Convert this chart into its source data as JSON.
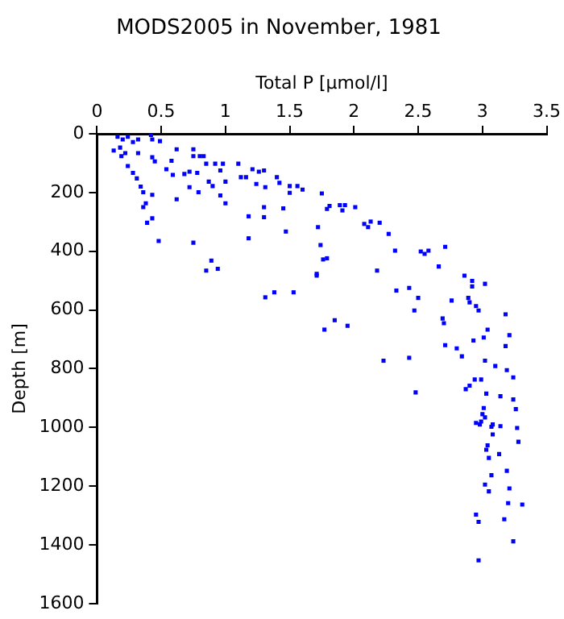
{
  "chart_data": {
    "type": "scatter",
    "title": "MODS2005 in November, 1981",
    "xlabel": "Total P [µmol/l]",
    "ylabel": "Depth [m]",
    "xlim": [
      0,
      3.5
    ],
    "xticks": [
      0,
      0.5,
      1,
      1.5,
      2,
      2.5,
      3,
      3.5
    ],
    "ylim": [
      1600,
      0
    ],
    "yticks": [
      0,
      200,
      400,
      600,
      800,
      1000,
      1200,
      1400,
      1600
    ],
    "grid": false,
    "legend": false,
    "marker": "square",
    "series": [
      {
        "color": "#0000ff",
        "x": [
          0.16,
          0.2,
          0.24,
          0.18,
          0.13,
          0.22,
          0.28,
          0.32,
          0.42,
          0.43,
          0.49,
          0.32,
          0.19,
          0.24,
          0.28,
          0.31,
          0.34,
          0.36,
          0.43,
          0.38,
          0.36,
          0.43,
          0.39,
          0.48,
          0.62,
          0.43,
          0.45,
          0.58,
          0.54,
          0.59,
          0.62,
          0.75,
          0.75,
          0.72,
          0.68,
          0.72,
          0.78,
          0.8,
          0.83,
          0.85,
          0.79,
          0.87,
          0.9,
          0.92,
          0.96,
          0.98,
          1.0,
          0.96,
          1.0,
          0.75,
          0.89,
          0.85,
          0.94,
          1.1,
          1.12,
          1.16,
          1.18,
          1.18,
          1.21,
          1.26,
          1.3,
          1.24,
          1.31,
          1.3,
          1.3,
          1.31,
          1.38,
          1.53,
          1.4,
          1.42,
          1.45,
          1.47,
          1.5,
          1.5,
          1.56,
          1.6,
          1.71,
          1.75,
          1.79,
          1.81,
          1.89,
          1.93,
          1.91,
          2.01,
          1.72,
          1.74,
          1.76,
          1.79,
          1.71,
          1.85,
          1.77,
          1.95,
          2.08,
          2.11,
          2.13,
          2.2,
          2.27,
          2.32,
          2.18,
          2.33,
          2.43,
          2.5,
          2.47,
          2.52,
          2.55,
          2.58,
          2.71,
          2.66,
          2.76,
          2.69,
          2.7,
          2.71,
          2.8,
          2.86,
          2.92,
          2.92,
          2.89,
          2.9,
          2.95,
          2.97,
          3.02,
          3.04,
          3.01,
          2.93,
          3.18,
          3.21,
          3.18,
          2.84,
          2.23,
          2.43,
          3.02,
          3.1,
          3.19,
          3.24,
          2.48,
          2.94,
          2.99,
          2.9,
          2.87,
          3.03,
          3.14,
          3.24,
          3.26,
          3.01,
          3.0,
          3.02,
          2.99,
          2.95,
          2.98,
          3.07,
          3.08,
          3.14,
          3.27,
          3.08,
          3.28,
          3.04,
          3.03,
          3.13,
          3.05,
          3.19,
          3.07,
          3.02,
          3.05,
          3.21,
          3.2,
          3.31,
          2.95,
          2.97,
          3.17,
          3.24,
          2.97
        ],
        "values": [
          10,
          19,
          10,
          47,
          57,
          66,
          28,
          19,
          4,
          19,
          25,
          66,
          76,
          110,
          133,
          152,
          180,
          199,
          208,
          237,
          250,
          288,
          303,
          365,
          53,
          80,
          94,
          92,
          121,
          140,
          223,
          53,
          76,
          129,
          137,
          182,
          133,
          76,
          76,
          102,
          199,
          163,
          178,
          102,
          125,
          102,
          163,
          210,
          237,
          371,
          432,
          466,
          460,
          102,
          148,
          148,
          281,
          356,
          121,
          129,
          125,
          171,
          182,
          250,
          284,
          557,
          540,
          540,
          148,
          167,
          254,
          333,
          178,
          201,
          178,
          190,
          477,
          203,
          256,
          246,
          243,
          243,
          261,
          250,
          318,
          379,
          428,
          424,
          483,
          635,
          667,
          654,
          307,
          318,
          299,
          303,
          341,
          398,
          466,
          534,
          525,
          559,
          602,
          401,
          409,
          398,
          385,
          452,
          568,
          629,
          645,
          720,
          731,
          483,
          501,
          520,
          559,
          574,
          587,
          602,
          511,
          667,
          694,
          704,
          615,
          686,
          723,
          758,
          773,
          763,
          773,
          791,
          805,
          830,
          881,
          837,
          837,
          858,
          870,
          885,
          894,
          905,
          938,
          934,
          955,
          966,
          980,
          985,
          990,
          998,
          990,
          996,
          1002,
          1024,
          1049,
          1061,
          1076,
          1091,
          1104,
          1148,
          1163,
          1195,
          1218,
          1208,
          1258,
          1263,
          1297,
          1322,
          1313,
          1388,
          1453
        ]
      }
    ]
  }
}
